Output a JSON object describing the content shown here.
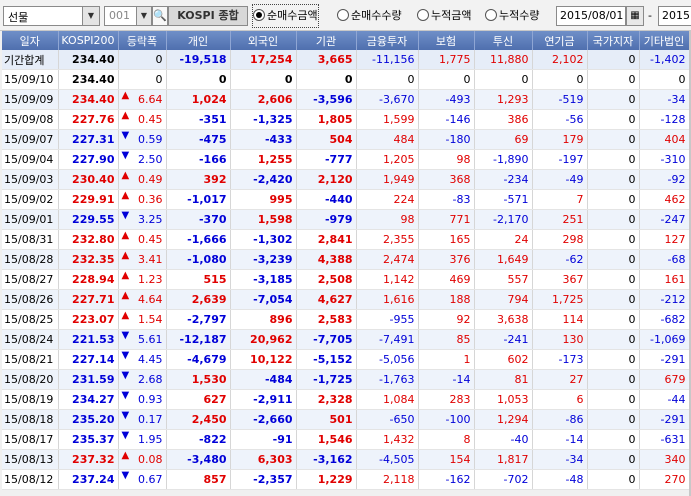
{
  "toolbar": {
    "market_select": "선물",
    "code": "001",
    "code_name": "KOSPI 종합",
    "radios": [
      "순매수금액",
      "순매수수량",
      "누적금액",
      "누적수량"
    ],
    "selected_radio": 0,
    "date_from": "2015/08/01",
    "date_sep": "-",
    "date_to": "2015"
  },
  "columns": [
    "일자",
    "KOSPI200",
    "등락폭",
    "개인",
    "외국인",
    "기관",
    "금융투자",
    "보험",
    "투신",
    "연기금",
    "국가지자",
    "기타법인"
  ],
  "rows": [
    {
      "date": "기간합계",
      "kospi": "234.40",
      "dir": "",
      "chg": "0",
      "c": [
        "-19,518",
        "17,254",
        "3,665",
        "-11,156",
        "1,775",
        "11,880",
        "2,102",
        "0",
        "-1,402"
      ],
      "sum": true
    },
    {
      "date": "15/09/10",
      "kospi": "234.40",
      "dir": "",
      "chg": "0",
      "c": [
        "0",
        "0",
        "0",
        "0",
        "0",
        "0",
        "0",
        "0",
        "0"
      ]
    },
    {
      "date": "15/09/09",
      "kospi": "234.40",
      "dir": "up",
      "chg": "6.64",
      "c": [
        "1,024",
        "2,606",
        "-3,596",
        "-3,670",
        "-493",
        "1,293",
        "-519",
        "0",
        "-34"
      ]
    },
    {
      "date": "15/09/08",
      "kospi": "227.76",
      "dir": "up",
      "chg": "0.45",
      "c": [
        "-351",
        "-1,325",
        "1,805",
        "1,599",
        "-146",
        "386",
        "-56",
        "0",
        "-128"
      ]
    },
    {
      "date": "15/09/07",
      "kospi": "227.31",
      "dir": "dn",
      "chg": "0.59",
      "c": [
        "-475",
        "-433",
        "504",
        "484",
        "-180",
        "69",
        "179",
        "0",
        "404"
      ]
    },
    {
      "date": "15/09/04",
      "kospi": "227.90",
      "dir": "dn",
      "chg": "2.50",
      "c": [
        "-166",
        "1,255",
        "-777",
        "1,205",
        "98",
        "-1,890",
        "-197",
        "0",
        "-310"
      ]
    },
    {
      "date": "15/09/03",
      "kospi": "230.40",
      "dir": "up",
      "chg": "0.49",
      "c": [
        "392",
        "-2,420",
        "2,120",
        "1,949",
        "368",
        "-234",
        "-49",
        "0",
        "-92"
      ]
    },
    {
      "date": "15/09/02",
      "kospi": "229.91",
      "dir": "up",
      "chg": "0.36",
      "c": [
        "-1,017",
        "995",
        "-440",
        "224",
        "-83",
        "-571",
        "7",
        "0",
        "462"
      ]
    },
    {
      "date": "15/09/01",
      "kospi": "229.55",
      "dir": "dn",
      "chg": "3.25",
      "c": [
        "-370",
        "1,598",
        "-979",
        "98",
        "771",
        "-2,170",
        "251",
        "0",
        "-247"
      ]
    },
    {
      "date": "15/08/31",
      "kospi": "232.80",
      "dir": "up",
      "chg": "0.45",
      "c": [
        "-1,666",
        "-1,302",
        "2,841",
        "2,355",
        "165",
        "24",
        "298",
        "0",
        "127"
      ]
    },
    {
      "date": "15/08/28",
      "kospi": "232.35",
      "dir": "up",
      "chg": "3.41",
      "c": [
        "-1,080",
        "-3,239",
        "4,388",
        "2,474",
        "376",
        "1,649",
        "-62",
        "0",
        "-68"
      ]
    },
    {
      "date": "15/08/27",
      "kospi": "228.94",
      "dir": "up",
      "chg": "1.23",
      "c": [
        "515",
        "-3,185",
        "2,508",
        "1,142",
        "469",
        "557",
        "367",
        "0",
        "161"
      ]
    },
    {
      "date": "15/08/26",
      "kospi": "227.71",
      "dir": "up",
      "chg": "4.64",
      "c": [
        "2,639",
        "-7,054",
        "4,627",
        "1,616",
        "188",
        "794",
        "1,725",
        "0",
        "-212"
      ]
    },
    {
      "date": "15/08/25",
      "kospi": "223.07",
      "dir": "up",
      "chg": "1.54",
      "c": [
        "-2,797",
        "896",
        "2,583",
        "-955",
        "92",
        "3,638",
        "114",
        "0",
        "-682"
      ]
    },
    {
      "date": "15/08/24",
      "kospi": "221.53",
      "dir": "dn",
      "chg": "5.61",
      "c": [
        "-12,187",
        "20,962",
        "-7,705",
        "-7,491",
        "85",
        "-241",
        "130",
        "0",
        "-1,069"
      ]
    },
    {
      "date": "15/08/21",
      "kospi": "227.14",
      "dir": "dn",
      "chg": "4.45",
      "c": [
        "-4,679",
        "10,122",
        "-5,152",
        "-5,056",
        "1",
        "602",
        "-173",
        "0",
        "-291"
      ]
    },
    {
      "date": "15/08/20",
      "kospi": "231.59",
      "dir": "dn",
      "chg": "2.68",
      "c": [
        "1,530",
        "-484",
        "-1,725",
        "-1,763",
        "-14",
        "81",
        "27",
        "0",
        "679"
      ]
    },
    {
      "date": "15/08/19",
      "kospi": "234.27",
      "dir": "dn",
      "chg": "0.93",
      "c": [
        "627",
        "-2,911",
        "2,328",
        "1,084",
        "283",
        "1,053",
        "6",
        "0",
        "-44"
      ]
    },
    {
      "date": "15/08/18",
      "kospi": "235.20",
      "dir": "dn",
      "chg": "0.17",
      "c": [
        "2,450",
        "-2,660",
        "501",
        "-650",
        "-100",
        "1,294",
        "-86",
        "0",
        "-291"
      ]
    },
    {
      "date": "15/08/17",
      "kospi": "235.37",
      "dir": "dn",
      "chg": "1.95",
      "c": [
        "-822",
        "-91",
        "1,546",
        "1,432",
        "8",
        "-40",
        "-14",
        "0",
        "-631"
      ]
    },
    {
      "date": "15/08/13",
      "kospi": "237.32",
      "dir": "up",
      "chg": "0.08",
      "c": [
        "-3,480",
        "6,303",
        "-3,162",
        "-4,505",
        "154",
        "1,817",
        "-34",
        "0",
        "340"
      ]
    },
    {
      "date": "15/08/12",
      "kospi": "237.24",
      "dir": "dn",
      "chg": "0.67",
      "c": [
        "857",
        "-2,357",
        "1,229",
        "2,118",
        "-162",
        "-702",
        "-48",
        "0",
        "270"
      ]
    }
  ]
}
